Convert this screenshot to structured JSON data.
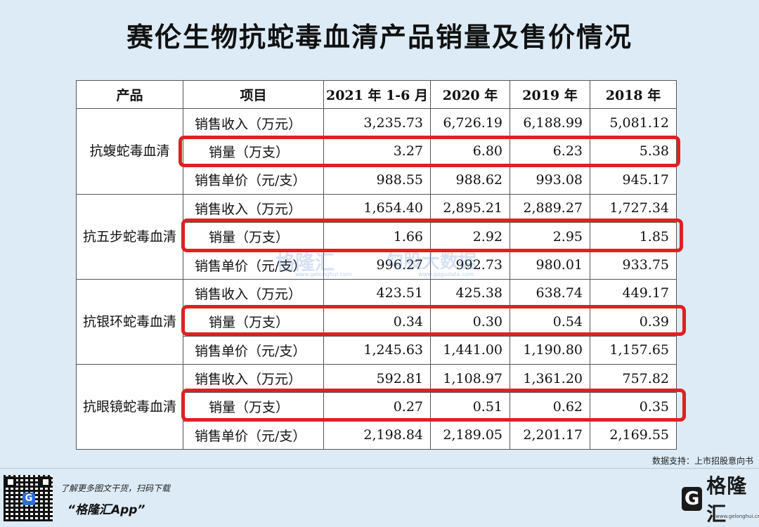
{
  "title": "赛伦生物抗蛇毒血清产品销量及售价情况",
  "table": {
    "headers": [
      "产品",
      "项目",
      "2021 年 1-6 月",
      "2020 年",
      "2019 年",
      "2018 年"
    ],
    "groups": [
      {
        "product": "抗蝮蛇毒血清",
        "rows": [
          {
            "item": "销售收入（万元）",
            "values": [
              "3,235.73",
              "6,726.19",
              "6,188.99",
              "5,081.12"
            ]
          },
          {
            "item": "销量（万支）",
            "values": [
              "3.27",
              "6.80",
              "6.23",
              "5.38"
            ]
          },
          {
            "item": "销售单价（元/支）",
            "values": [
              "988.55",
              "988.62",
              "993.08",
              "945.17"
            ]
          }
        ]
      },
      {
        "product": "抗五步蛇毒血清",
        "rows": [
          {
            "item": "销售收入（万元）",
            "values": [
              "1,654.40",
              "2,895.21",
              "2,889.27",
              "1,727.34"
            ]
          },
          {
            "item": "销量（万支）",
            "values": [
              "1.66",
              "2.92",
              "2.95",
              "1.85"
            ]
          },
          {
            "item": "销售单价（元/支）",
            "values": [
              "996.27",
              "992.73",
              "980.01",
              "933.75"
            ]
          }
        ]
      },
      {
        "product": "抗银环蛇毒血清",
        "rows": [
          {
            "item": "销售收入（万元）",
            "values": [
              "423.51",
              "425.38",
              "638.74",
              "449.17"
            ]
          },
          {
            "item": "销量（万支）",
            "values": [
              "0.34",
              "0.30",
              "0.54",
              "0.39"
            ]
          },
          {
            "item": "销售单价（元/支）",
            "values": [
              "1,245.63",
              "1,441.00",
              "1,190.80",
              "1,157.65"
            ]
          }
        ]
      },
      {
        "product": "抗眼镜蛇毒血清",
        "rows": [
          {
            "item": "销售收入（万元）",
            "values": [
              "592.81",
              "1,108.97",
              "1,361.20",
              "757.82"
            ]
          },
          {
            "item": "销量（万支）",
            "values": [
              "0.27",
              "0.51",
              "0.62",
              "0.35"
            ]
          },
          {
            "item": "销售单价（元/支）",
            "values": [
              "2,198.84",
              "2,189.05",
              "2,201.17",
              "2,169.55"
            ]
          }
        ]
      }
    ]
  },
  "source": "数据支持：上市招股意向书",
  "footer": {
    "promo_text": "了解更多图文干货，扫码下载",
    "app_name": "“格隆汇App”",
    "qr_logo": "G",
    "brand_logo_letter": "G",
    "brand_name": "格隆汇",
    "brand_url": "www.gelonghui.com"
  },
  "watermark": {
    "brand": "格隆汇",
    "brand_url": "www.gelonghui.com",
    "data_brand": "勾股大数据",
    "data_url": "www.gogudata.com"
  },
  "colors": {
    "highlight": "#e02020",
    "background": "#dcebf6"
  }
}
